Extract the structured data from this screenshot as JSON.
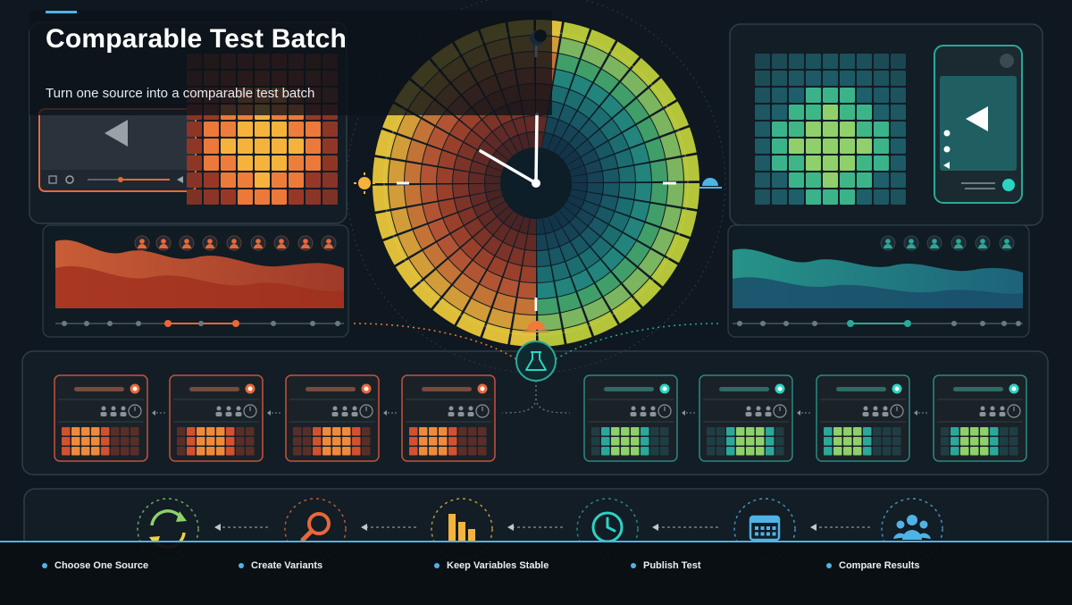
{
  "header": {
    "title": "Comparable Test Batch",
    "subtitle": "Turn one source into a comparable test batch"
  },
  "steps": [
    {
      "label": "Choose One Source",
      "icon": "refresh-cycle-icon"
    },
    {
      "label": "Create Variants",
      "icon": "magnifier-icon"
    },
    {
      "label": "Keep Variables Stable",
      "icon": "bar-chart-icon"
    },
    {
      "label": "Publish Test",
      "icon": "clock-icon"
    },
    {
      "label": "Compare Results",
      "icon": "users-group-icon"
    }
  ],
  "colors": {
    "accent": "#4fb3e6",
    "warm": "#e8683a",
    "warm_light": "#f5b33c",
    "cool": "#2aa89a",
    "cool_light": "#8fd06a",
    "panel_border": "#2f3d48"
  }
}
